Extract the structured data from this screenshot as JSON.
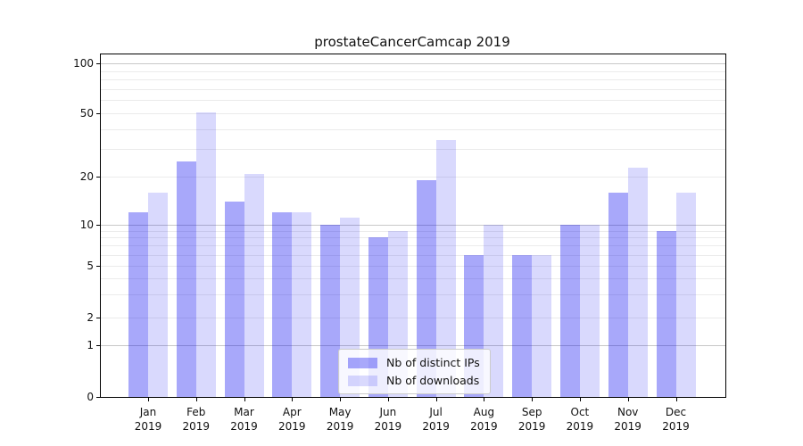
{
  "chart_data": {
    "type": "bar",
    "title": "prostateCancerCamcap 2019",
    "categories": [
      "Jan 2019",
      "Feb 2019",
      "Mar 2019",
      "Apr 2019",
      "May 2019",
      "Jun 2019",
      "Jul 2019",
      "Aug 2019",
      "Sep 2019",
      "Oct 2019",
      "Nov 2019",
      "Dec 2019"
    ],
    "series": [
      {
        "name": "Nb of distinct IPs",
        "color": "rgba(0,0,240,0.34)",
        "values": [
          12,
          25,
          14,
          12,
          10,
          8,
          19,
          6,
          6,
          10,
          16,
          9
        ]
      },
      {
        "name": "Nb of downloads",
        "color": "rgba(0,0,240,0.15)",
        "values": [
          16,
          51,
          21,
          12,
          11,
          9,
          34,
          10,
          6,
          10,
          23,
          16
        ]
      }
    ],
    "yaxis": {
      "scale": "symlog-like",
      "ticks": [
        0,
        1,
        2,
        5,
        10,
        20,
        50,
        100
      ],
      "major_gridlines": [
        1,
        10,
        100
      ],
      "minor_gridlines": [
        2,
        3,
        4,
        5,
        6,
        7,
        8,
        9,
        20,
        30,
        40,
        50,
        60,
        70,
        80,
        90
      ],
      "anchors": [
        [
          0,
          1.0
        ],
        [
          1,
          0.8486
        ],
        [
          2,
          0.7676
        ],
        [
          5,
          0.6162
        ],
        [
          10,
          0.4961
        ],
        [
          20,
          0.3577
        ],
        [
          50,
          0.1723
        ],
        [
          100,
          0.0261
        ]
      ]
    },
    "xaxis": {
      "label_line2": "2019"
    },
    "legend": {
      "position": "lower center"
    },
    "grid": true,
    "colors": {
      "bar_ips": "rgba(0,0,240,0.34)",
      "bar_downloads": "rgba(0,0,240,0.15)",
      "grid_minor": "#ebebeb",
      "grid_major": "#c8c8c8",
      "spine": "#000000"
    }
  }
}
